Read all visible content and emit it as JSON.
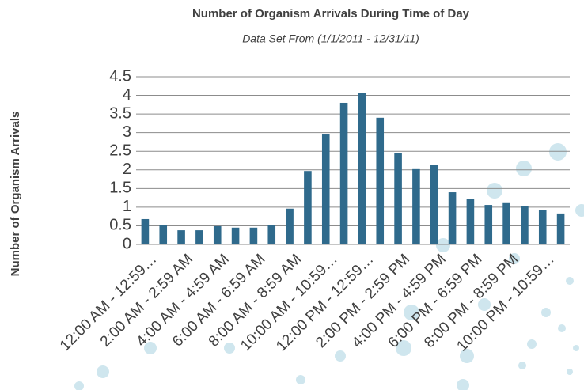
{
  "chart_data": {
    "type": "bar",
    "title": "Number of Organism Arrivals During Time of Day",
    "subtitle": "Data Set From (1/1/2011 - 12/31/11)",
    "y_label": "Number of Organism Arrivals",
    "categories": [
      "12:00 AM - 12:59…",
      null,
      "2:00 AM - 2:59 AM",
      null,
      "4:00 AM - 4:59 AM",
      null,
      "6:00 AM - 6:59 AM",
      null,
      "8:00 AM - 8:59 AM",
      null,
      "10:00 AM - 10:59…",
      null,
      "12:00 PM - 12:59…",
      null,
      "2:00 PM - 2:59 PM",
      null,
      "4:00 PM - 4:59 PM",
      null,
      "6:00 PM - 6:59 PM",
      null,
      "8:00 PM - 8:59 PM",
      null,
      "10:00 PM - 10:59…",
      null
    ],
    "values": [
      0.68,
      0.53,
      0.38,
      0.38,
      0.49,
      0.45,
      0.45,
      0.51,
      0.96,
      1.97,
      2.95,
      3.8,
      4.06,
      3.4,
      2.46,
      2.02,
      2.14,
      1.4,
      1.21,
      1.06,
      1.13,
      1.02,
      0.93,
      0.83
    ],
    "color": "#2f6a8c",
    "ylim": [
      0,
      4.5
    ],
    "yticks": [
      0,
      0.5,
      1,
      1.5,
      2,
      2.5,
      3,
      3.5,
      4,
      4.5
    ],
    "grid": true
  }
}
